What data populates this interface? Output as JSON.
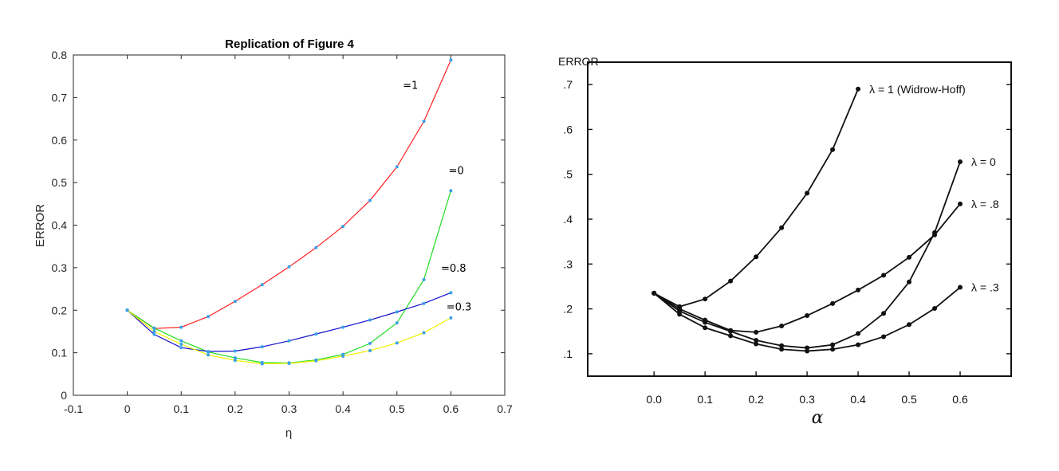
{
  "chart_data": [
    {
      "type": "line",
      "title": "Replication of Figure 4",
      "xlabel": "η",
      "ylabel": "ERROR",
      "xlim": [
        -0.1,
        0.7
      ],
      "ylim": [
        0,
        0.8
      ],
      "xticks": [
        "-0.1",
        "0",
        "0.1",
        "0.2",
        "0.3",
        "0.4",
        "0.5",
        "0.6",
        "0.7"
      ],
      "yticks": [
        "0",
        "0.1",
        "0.2",
        "0.3",
        "0.4",
        "0.5",
        "0.6",
        "0.7",
        "0.8"
      ],
      "grid": false,
      "x": [
        0,
        0.05,
        0.1,
        0.15,
        0.2,
        0.25,
        0.3,
        0.35,
        0.4,
        0.45,
        0.5,
        0.55,
        0.6
      ],
      "series": [
        {
          "name": "=1",
          "color": "#ff2020",
          "values": [
            0.2,
            0.157,
            0.16,
            0.185,
            0.221,
            0.26,
            0.302,
            0.347,
            0.397,
            0.458,
            0.537,
            0.644,
            0.788
          ]
        },
        {
          "name": "=0",
          "color": "#22dd22",
          "values": [
            0.2,
            0.158,
            0.128,
            0.102,
            0.088,
            0.077,
            0.076,
            0.083,
            0.096,
            0.122,
            0.17,
            0.272,
            0.481
          ]
        },
        {
          "name": "=0.8",
          "color": "#1010cc",
          "values": [
            0.2,
            0.143,
            0.112,
            0.103,
            0.104,
            0.114,
            0.128,
            0.144,
            0.16,
            0.177,
            0.196,
            0.216,
            0.241
          ]
        },
        {
          "name": "=0.3",
          "color": "#f2f200",
          "values": [
            0.2,
            0.15,
            0.12,
            0.095,
            0.082,
            0.074,
            0.075,
            0.081,
            0.092,
            0.105,
            0.123,
            0.147,
            0.182
          ]
        }
      ]
    },
    {
      "type": "line",
      "title": "",
      "xlabel": "α",
      "ylabel": "ERROR",
      "xlim": [
        -0.13,
        0.7
      ],
      "ylim": [
        0.05,
        0.75
      ],
      "xticks": [
        "0.0",
        "0.1",
        "0.2",
        "0.3",
        "0.4",
        "0.5",
        "0.6"
      ],
      "yticks": [
        ".1",
        ".2",
        ".3",
        ".4",
        ".5",
        ".6",
        ".7"
      ],
      "grid": false,
      "series": [
        {
          "name": "λ = 1 (Widrow-Hoff)",
          "x": [
            0,
            0.05,
            0.1,
            0.15,
            0.2,
            0.25,
            0.3,
            0.35,
            0.4
          ],
          "values": [
            0.235,
            0.205,
            0.222,
            0.262,
            0.316,
            0.381,
            0.458,
            0.555,
            0.69
          ]
        },
        {
          "name": "λ = 0",
          "x": [
            0,
            0.05,
            0.1,
            0.15,
            0.2,
            0.25,
            0.3,
            0.35,
            0.4,
            0.45,
            0.5,
            0.55,
            0.6
          ],
          "values": [
            0.235,
            0.195,
            0.17,
            0.15,
            0.13,
            0.118,
            0.113,
            0.12,
            0.145,
            0.19,
            0.26,
            0.37,
            0.528
          ]
        },
        {
          "name": "λ = .8",
          "x": [
            0,
            0.05,
            0.1,
            0.15,
            0.2,
            0.25,
            0.3,
            0.35,
            0.4,
            0.45,
            0.5,
            0.55,
            0.6
          ],
          "values": [
            0.235,
            0.2,
            0.175,
            0.152,
            0.148,
            0.162,
            0.185,
            0.212,
            0.242,
            0.275,
            0.315,
            0.365,
            0.434
          ]
        },
        {
          "name": "λ = .3",
          "x": [
            0,
            0.05,
            0.1,
            0.15,
            0.2,
            0.25,
            0.3,
            0.35,
            0.4,
            0.45,
            0.5,
            0.55,
            0.6
          ],
          "values": [
            0.235,
            0.188,
            0.158,
            0.14,
            0.122,
            0.11,
            0.106,
            0.11,
            0.12,
            0.138,
            0.165,
            0.201,
            0.248
          ]
        }
      ]
    }
  ]
}
